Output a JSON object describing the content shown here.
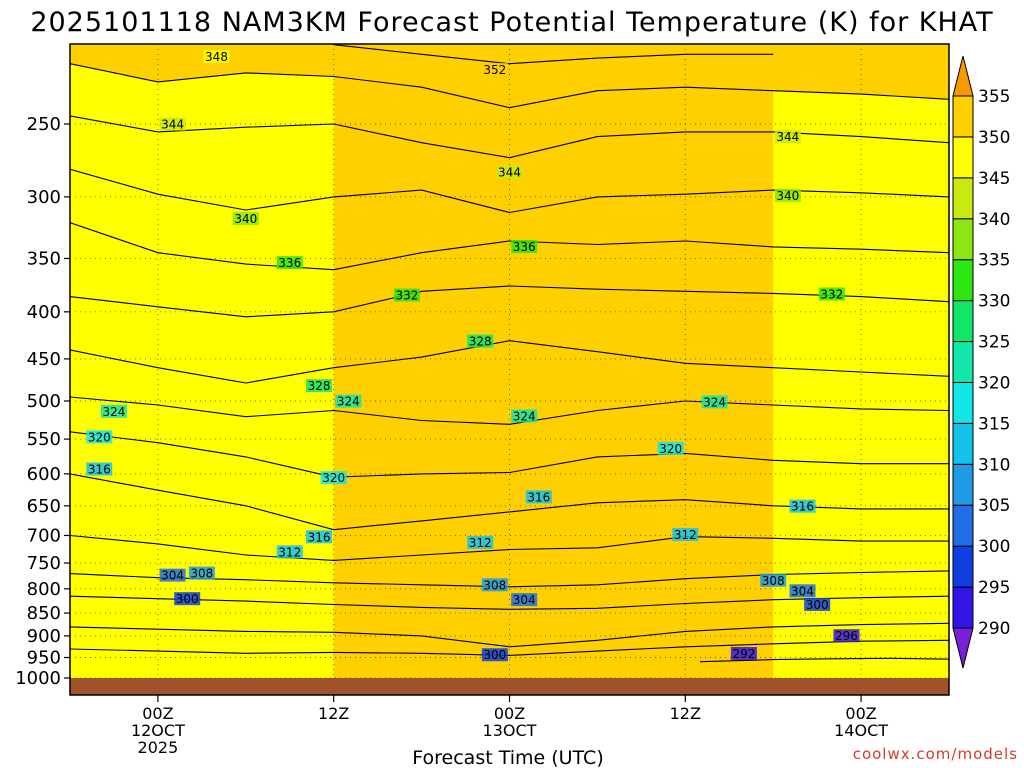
{
  "chart_data": {
    "type": "heatmap",
    "title": "2025101118 NAM3KM Forecast Potential Temperature (K) for KHAT",
    "xlabel": "Forecast Time (UTC)",
    "ylabel": "",
    "credit": "coolwx.com/models",
    "y_axis": {
      "scale": "pressure (hPa), decreasing upward",
      "ticks": [
        250,
        300,
        350,
        400,
        450,
        500,
        550,
        600,
        650,
        700,
        750,
        800,
        850,
        900,
        950,
        1000
      ],
      "range": [
        1000,
        200
      ]
    },
    "x_axis": {
      "range_hours": [
        -6,
        54
      ],
      "ticks": [
        {
          "hour": 0,
          "label": [
            "00Z",
            "12OCT",
            "2025"
          ]
        },
        {
          "hour": 12,
          "label": [
            "12Z"
          ]
        },
        {
          "hour": 24,
          "label": [
            "00Z",
            "13OCT"
          ]
        },
        {
          "hour": 36,
          "label": [
            "12Z"
          ]
        },
        {
          "hour": 48,
          "label": [
            "00Z",
            "14OCT"
          ]
        }
      ]
    },
    "colorbar": {
      "levels": [
        290,
        295,
        300,
        305,
        310,
        315,
        320,
        325,
        330,
        335,
        340,
        345,
        350,
        355
      ],
      "colors": [
        "#7a1fd8",
        "#3314e6",
        "#0f3fe0",
        "#1f6ee6",
        "#1f9ae6",
        "#14c3ec",
        "#12e6e6",
        "#12e6a8",
        "#12e66a",
        "#2ee612",
        "#8ce612",
        "#c8ea10",
        "#ffff00",
        "#ffd000",
        "#f79a00"
      ],
      "extends": "both"
    },
    "contour_levels": [
      292,
      296,
      300,
      304,
      308,
      312,
      316,
      320,
      324,
      328,
      332,
      336,
      340,
      344,
      348,
      352
    ],
    "isentropes": [
      {
        "theta": 292,
        "points": [
          [
            37,
            960
          ],
          [
            42,
            955
          ],
          [
            46,
            953
          ],
          [
            50,
            952
          ],
          [
            54,
            954
          ]
        ]
      },
      {
        "theta": 296,
        "points": [
          [
            -6,
            930
          ],
          [
            0,
            935
          ],
          [
            6,
            940
          ],
          [
            12,
            938
          ],
          [
            18,
            940
          ],
          [
            24,
            945
          ],
          [
            30,
            935
          ],
          [
            36,
            925
          ],
          [
            42,
            918
          ],
          [
            48,
            912
          ],
          [
            54,
            910
          ]
        ]
      },
      {
        "theta": 300,
        "points": [
          [
            -6,
            880
          ],
          [
            0,
            885
          ],
          [
            6,
            890
          ],
          [
            12,
            892
          ],
          [
            18,
            900
          ],
          [
            24,
            925
          ],
          [
            30,
            910
          ],
          [
            36,
            890
          ],
          [
            42,
            880
          ],
          [
            48,
            875
          ],
          [
            54,
            872
          ]
        ]
      },
      {
        "theta": 304,
        "points": [
          [
            -6,
            815
          ],
          [
            0,
            820
          ],
          [
            6,
            825
          ],
          [
            12,
            832
          ],
          [
            18,
            838
          ],
          [
            24,
            842
          ],
          [
            30,
            840
          ],
          [
            36,
            830
          ],
          [
            42,
            822
          ],
          [
            48,
            818
          ],
          [
            54,
            815
          ]
        ]
      },
      {
        "theta": 308,
        "points": [
          [
            -6,
            770
          ],
          [
            0,
            778
          ],
          [
            6,
            782
          ],
          [
            12,
            788
          ],
          [
            18,
            792
          ],
          [
            24,
            796
          ],
          [
            30,
            792
          ],
          [
            36,
            780
          ],
          [
            42,
            772
          ],
          [
            48,
            768
          ],
          [
            54,
            765
          ]
        ]
      },
      {
        "theta": 312,
        "points": [
          [
            -6,
            700
          ],
          [
            0,
            715
          ],
          [
            6,
            735
          ],
          [
            12,
            745
          ],
          [
            18,
            735
          ],
          [
            24,
            725
          ],
          [
            30,
            722
          ],
          [
            36,
            702
          ],
          [
            42,
            705
          ],
          [
            48,
            710
          ],
          [
            54,
            710
          ]
        ]
      },
      {
        "theta": 316,
        "points": [
          [
            -6,
            600
          ],
          [
            0,
            625
          ],
          [
            6,
            650
          ],
          [
            12,
            690
          ],
          [
            18,
            675
          ],
          [
            24,
            660
          ],
          [
            30,
            645
          ],
          [
            36,
            640
          ],
          [
            42,
            650
          ],
          [
            48,
            655
          ],
          [
            54,
            655
          ]
        ]
      },
      {
        "theta": 320,
        "points": [
          [
            -6,
            540
          ],
          [
            0,
            555
          ],
          [
            6,
            575
          ],
          [
            12,
            605
          ],
          [
            18,
            600
          ],
          [
            24,
            598
          ],
          [
            30,
            575
          ],
          [
            36,
            570
          ],
          [
            42,
            580
          ],
          [
            48,
            585
          ],
          [
            54,
            585
          ]
        ]
      },
      {
        "theta": 324,
        "points": [
          [
            -6,
            495
          ],
          [
            0,
            505
          ],
          [
            6,
            520
          ],
          [
            12,
            512
          ],
          [
            18,
            525
          ],
          [
            24,
            530
          ],
          [
            30,
            512
          ],
          [
            36,
            500
          ],
          [
            42,
            505
          ],
          [
            48,
            510
          ],
          [
            54,
            512
          ]
        ]
      },
      {
        "theta": 328,
        "points": [
          [
            -6,
            440
          ],
          [
            0,
            460
          ],
          [
            6,
            478
          ],
          [
            12,
            460
          ],
          [
            18,
            448
          ],
          [
            24,
            430
          ],
          [
            30,
            442
          ],
          [
            36,
            455
          ],
          [
            42,
            460
          ],
          [
            48,
            465
          ],
          [
            54,
            470
          ]
        ]
      },
      {
        "theta": 332,
        "points": [
          [
            -6,
            385
          ],
          [
            0,
            395
          ],
          [
            6,
            405
          ],
          [
            12,
            400
          ],
          [
            18,
            380
          ],
          [
            24,
            375
          ],
          [
            30,
            378
          ],
          [
            36,
            380
          ],
          [
            42,
            382
          ],
          [
            48,
            385
          ],
          [
            54,
            390
          ]
        ]
      },
      {
        "theta": 336,
        "points": [
          [
            -6,
            320
          ],
          [
            0,
            345
          ],
          [
            6,
            355
          ],
          [
            12,
            360
          ],
          [
            18,
            345
          ],
          [
            24,
            335
          ],
          [
            30,
            338
          ],
          [
            36,
            335
          ],
          [
            42,
            340
          ],
          [
            48,
            342
          ],
          [
            54,
            345
          ]
        ]
      },
      {
        "theta": 340,
        "points": [
          [
            -6,
            280
          ],
          [
            0,
            298
          ],
          [
            6,
            310
          ],
          [
            12,
            300
          ],
          [
            18,
            295
          ],
          [
            24,
            312
          ],
          [
            30,
            300
          ],
          [
            36,
            298
          ],
          [
            42,
            295
          ],
          [
            48,
            297
          ],
          [
            54,
            300
          ]
        ]
      },
      {
        "theta": 344,
        "points": [
          [
            -6,
            245
          ],
          [
            0,
            255
          ],
          [
            6,
            252
          ],
          [
            12,
            250
          ],
          [
            18,
            262
          ],
          [
            24,
            272
          ],
          [
            30,
            258
          ],
          [
            36,
            255
          ],
          [
            42,
            255
          ],
          [
            48,
            258
          ],
          [
            54,
            262
          ]
        ]
      },
      {
        "theta": 348,
        "points": [
          [
            -6,
            215
          ],
          [
            0,
            225
          ],
          [
            6,
            220
          ],
          [
            12,
            222
          ],
          [
            18,
            228
          ],
          [
            24,
            240
          ],
          [
            30,
            230
          ],
          [
            36,
            228
          ],
          [
            42,
            230
          ],
          [
            48,
            232
          ],
          [
            54,
            235
          ]
        ]
      },
      {
        "theta": 352,
        "points": [
          [
            12,
            205
          ],
          [
            18,
            210
          ],
          [
            24,
            215
          ],
          [
            30,
            212
          ],
          [
            36,
            210
          ],
          [
            42,
            210
          ]
        ]
      }
    ],
    "contour_labels": [
      {
        "text": "348",
        "hour": 4,
        "p": 212
      },
      {
        "text": "352",
        "hour": 23,
        "p": 219
      },
      {
        "text": "344",
        "hour": 1,
        "p": 251
      },
      {
        "text": "344",
        "hour": 24,
        "p": 283
      },
      {
        "text": "344",
        "hour": 43,
        "p": 259
      },
      {
        "text": "340",
        "hour": 6,
        "p": 318
      },
      {
        "text": "340",
        "hour": 43,
        "p": 300
      },
      {
        "text": "336",
        "hour": 9,
        "p": 355
      },
      {
        "text": "336",
        "hour": 25,
        "p": 341
      },
      {
        "text": "332",
        "hour": 17,
        "p": 385
      },
      {
        "text": "332",
        "hour": 46,
        "p": 384
      },
      {
        "text": "328",
        "hour": 22,
        "p": 432
      },
      {
        "text": "328",
        "hour": 11,
        "p": 483
      },
      {
        "text": "324",
        "hour": -3,
        "p": 515
      },
      {
        "text": "324",
        "hour": 13,
        "p": 502
      },
      {
        "text": "324",
        "hour": 25,
        "p": 521
      },
      {
        "text": "324",
        "hour": 38,
        "p": 503
      },
      {
        "text": "320",
        "hour": -4,
        "p": 549
      },
      {
        "text": "320",
        "hour": 35,
        "p": 565
      },
      {
        "text": "320",
        "hour": 12,
        "p": 608
      },
      {
        "text": "316",
        "hour": -4,
        "p": 595
      },
      {
        "text": "316",
        "hour": 26,
        "p": 638
      },
      {
        "text": "316",
        "hour": 44,
        "p": 653
      },
      {
        "text": "316",
        "hour": 11,
        "p": 705
      },
      {
        "text": "312",
        "hour": 9,
        "p": 732
      },
      {
        "text": "312",
        "hour": 22,
        "p": 715
      },
      {
        "text": "312",
        "hour": 36,
        "p": 701
      },
      {
        "text": "308",
        "hour": 3,
        "p": 772
      },
      {
        "text": "308",
        "hour": 23,
        "p": 795
      },
      {
        "text": "308",
        "hour": 42,
        "p": 786
      },
      {
        "text": "304",
        "hour": 1,
        "p": 776
      },
      {
        "text": "304",
        "hour": 25,
        "p": 825
      },
      {
        "text": "304",
        "hour": 44,
        "p": 807
      },
      {
        "text": "300",
        "hour": 2,
        "p": 823
      },
      {
        "text": "300",
        "hour": 45,
        "p": 835
      },
      {
        "text": "300",
        "hour": 23,
        "p": 947
      },
      {
        "text": "296",
        "hour": 47,
        "p": 903
      },
      {
        "text": "292",
        "hour": 40,
        "p": 944
      }
    ]
  }
}
